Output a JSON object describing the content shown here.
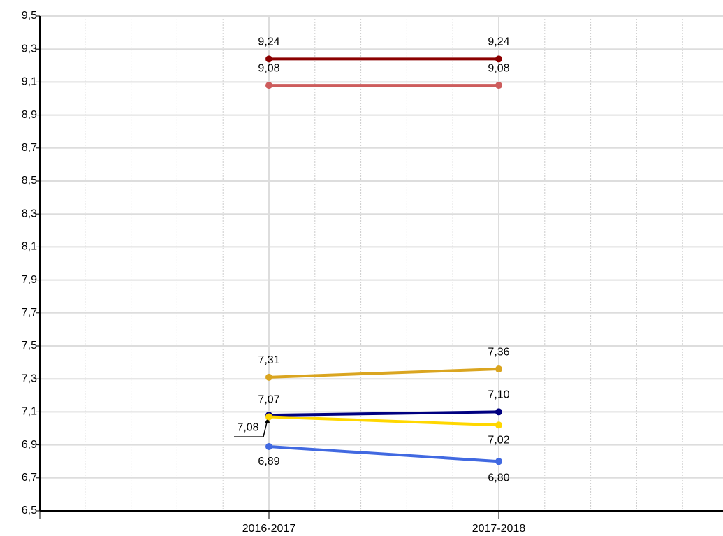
{
  "chart_data": {
    "type": "line",
    "categories": [
      "2016-2017",
      "2017-2018"
    ],
    "series": [
      {
        "color": "#8b0000",
        "values": [
          9.24,
          9.24
        ],
        "value_labels": [
          "9,24",
          "9,24"
        ]
      },
      {
        "color": "#cd5c5c",
        "values": [
          9.08,
          9.08
        ],
        "value_labels": [
          "9,08",
          "9,08"
        ]
      },
      {
        "color": "#daa520",
        "values": [
          7.31,
          7.36
        ],
        "value_labels": [
          "7,31",
          "7,36"
        ]
      },
      {
        "color": "#000080",
        "values": [
          7.08,
          7.1
        ],
        "value_labels": [
          "7,08",
          "7,10"
        ]
      },
      {
        "color": "#ffd700",
        "values": [
          7.07,
          7.02
        ],
        "value_labels": [
          "7,07",
          "7,02"
        ]
      },
      {
        "color": "#4169e1",
        "values": [
          6.89,
          6.8
        ],
        "value_labels": [
          "6,89",
          "6,80"
        ]
      }
    ],
    "ylim": [
      6.5,
      9.5
    ],
    "yticks": [
      {
        "value": 6.5,
        "label": "6,5"
      },
      {
        "value": 6.7,
        "label": "6,7"
      },
      {
        "value": 6.9,
        "label": "6,9"
      },
      {
        "value": 7.1,
        "label": "7,1"
      },
      {
        "value": 7.3,
        "label": "7,3"
      },
      {
        "value": 7.5,
        "label": "7,5"
      },
      {
        "value": 7.7,
        "label": "7,7"
      },
      {
        "value": 7.9,
        "label": "7,9"
      },
      {
        "value": 8.1,
        "label": "8,1"
      },
      {
        "value": 8.3,
        "label": "8,3"
      },
      {
        "value": 8.5,
        "label": "8,5"
      },
      {
        "value": 8.7,
        "label": "8,7"
      },
      {
        "value": 8.9,
        "label": "8,9"
      },
      {
        "value": 9.1,
        "label": "9,1"
      },
      {
        "value": 9.3,
        "label": "9,3"
      },
      {
        "value": 9.5,
        "label": "9,5"
      }
    ],
    "grid": true
  }
}
